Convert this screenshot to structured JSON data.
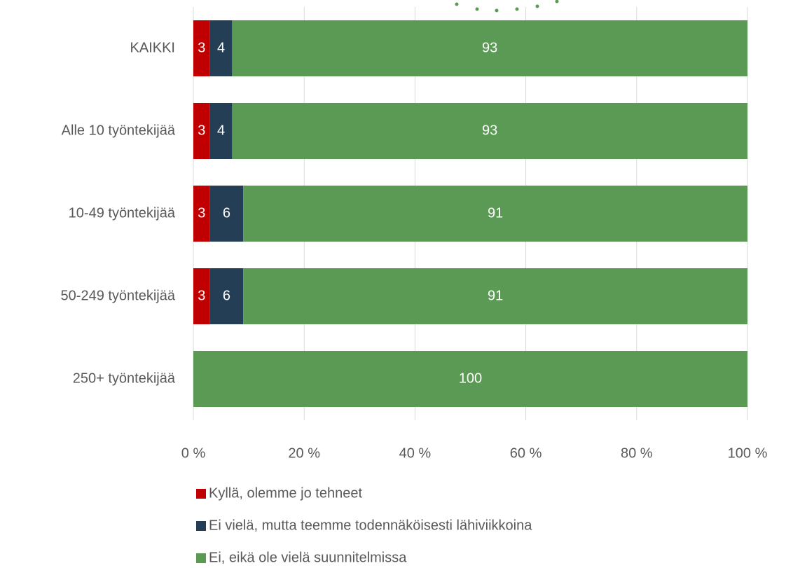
{
  "chart_data": {
    "type": "stacked-bar-horizontal",
    "categories": [
      "KAIKKI",
      "Alle 10 työntekijää",
      "10-49 työntekijää",
      "50-249 työntekijää",
      "250+ työntekijää"
    ],
    "series": [
      {
        "name": "Kyllä, olemme jo tehneet",
        "color": "#c00000",
        "values": [
          3,
          3,
          3,
          3,
          0
        ]
      },
      {
        "name": "Ei vielä, mutta teemme todennäköisesti lähiviikkoina",
        "color": "#243f55",
        "values": [
          4,
          4,
          6,
          6,
          0
        ]
      },
      {
        "name": "Ei, eikä ole vielä suunnitelmissa",
        "color": "#5b9a55",
        "values": [
          93,
          93,
          91,
          91,
          100
        ]
      }
    ],
    "xlim": [
      0,
      100
    ],
    "xticks": [
      {
        "value": 0,
        "label": "0 %"
      },
      {
        "value": 20,
        "label": "20 %"
      },
      {
        "value": 40,
        "label": "40 %"
      },
      {
        "value": 60,
        "label": "60 %"
      },
      {
        "value": 80,
        "label": "80 %"
      },
      {
        "value": 100,
        "label": "100 %"
      }
    ],
    "grid": true
  }
}
